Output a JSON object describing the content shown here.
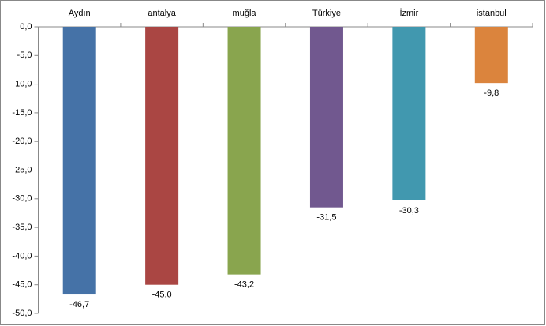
{
  "chart_data": {
    "type": "bar",
    "categories": [
      "Aydın",
      "antalya",
      "muğla",
      "Türkiye",
      "İzmir",
      "istanbul"
    ],
    "series": [
      {
        "values": [
          -46.7,
          -45.0,
          -43.2,
          -31.5,
          -30.3,
          -9.8
        ],
        "value_labels": [
          "-46,7",
          "-45,0",
          "-43,2",
          "-31,5",
          "-30,3",
          "-9,8"
        ],
        "colors": [
          "#4572a7",
          "#aa4643",
          "#89a54e",
          "#71588f",
          "#4198af",
          "#db843d"
        ]
      }
    ],
    "ylim": [
      0,
      -50
    ],
    "yticks": [
      {
        "value": 0,
        "label": "0,0"
      },
      {
        "value": -5,
        "label": "-5,0"
      },
      {
        "value": -10,
        "label": "-10,0"
      },
      {
        "value": -15,
        "label": "-15,0"
      },
      {
        "value": -20,
        "label": "-20,0"
      },
      {
        "value": -25,
        "label": "-25,0"
      },
      {
        "value": -30,
        "label": "-30,0"
      },
      {
        "value": -35,
        "label": "-35,0"
      },
      {
        "value": -40,
        "label": "-40,0"
      },
      {
        "value": -45,
        "label": "-45,0"
      },
      {
        "value": -50,
        "label": "-50,0"
      }
    ],
    "grid": false
  }
}
